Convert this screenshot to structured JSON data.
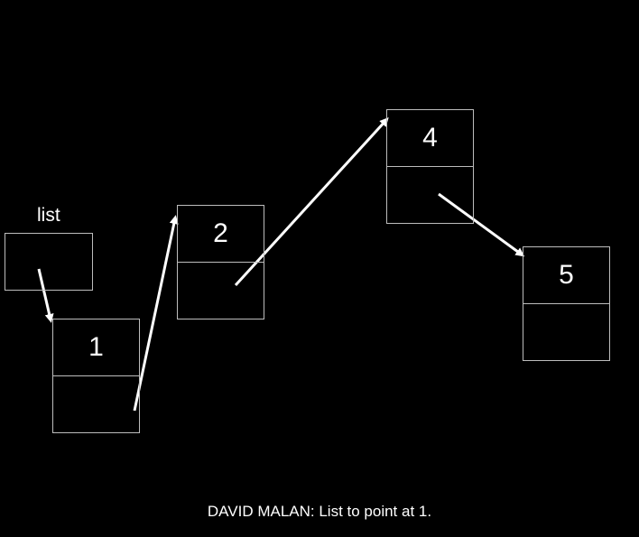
{
  "list_pointer": {
    "label": "list"
  },
  "nodes": [
    {
      "value": "1"
    },
    {
      "value": "2"
    },
    {
      "value": "4"
    },
    {
      "value": "5"
    }
  ],
  "caption": "DAVID MALAN: List to point at 1.",
  "colors": {
    "background": "#000000",
    "box_border": "#bdbdbd",
    "arrow": "#ffffff",
    "text": "#ffffff"
  }
}
